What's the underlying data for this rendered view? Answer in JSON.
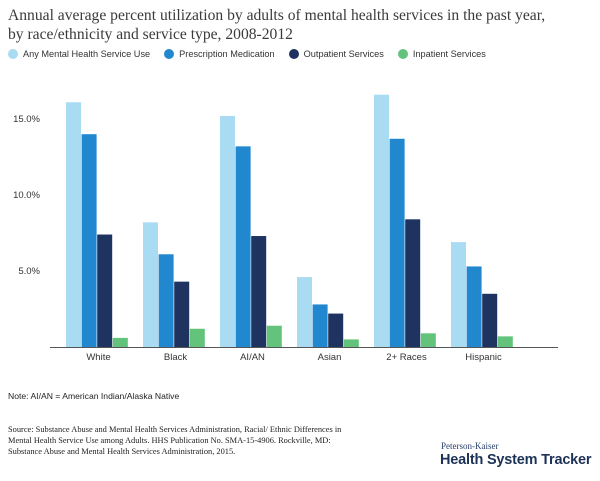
{
  "title_lines": [
    "Annual average percent utilization by adults of mental health services in the past year,",
    "by race/ethnicity and service type, 2008-2012"
  ],
  "colors": {
    "any": "#a9dbf3",
    "prescription": "#2187cf",
    "outpatient": "#1f3361",
    "inpatient": "#63c37b",
    "axis": "#555555",
    "grid": "#e5e5e5"
  },
  "note": "Note: AI/AN = American Indian/Alaska Native",
  "source_lines": [
    "Source: Substance Abuse and Mental Health Services Administration, Racial/ Ethnic Differences in",
    "Mental Health Service Use among Adults. HHS Publication No. SMA-15-4906. Rockville, MD:",
    "Substance Abuse and Mental Health Services Administration, 2015."
  ],
  "brand": {
    "top": "Peterson-Kaiser",
    "main": "Health System Tracker"
  },
  "chart_data": {
    "type": "bar",
    "title": "Annual average percent utilization by adults of mental health services in the past year, by race/ethnicity and service type, 2008-2012",
    "categories": [
      "White",
      "Black",
      "AI/AN",
      "Asian",
      "2+ Races",
      "Hispanic"
    ],
    "series": [
      {
        "name": "Any Mental Health Service Use",
        "values": [
          16.1,
          8.2,
          15.2,
          4.6,
          16.6,
          6.9
        ]
      },
      {
        "name": "Prescription Medication",
        "values": [
          14.0,
          6.1,
          13.2,
          2.8,
          13.7,
          5.3
        ]
      },
      {
        "name": "Outpatient Services",
        "values": [
          7.4,
          4.3,
          7.3,
          2.2,
          8.4,
          3.5
        ]
      },
      {
        "name": "Inpatient Services",
        "values": [
          0.6,
          1.2,
          1.4,
          0.5,
          0.9,
          0.7
        ]
      }
    ],
    "yticks": [
      5,
      10,
      15
    ],
    "ytick_labels": [
      "5.0%",
      "10.0%",
      "15.0%"
    ],
    "ylim": [
      0,
      18
    ],
    "xlabel": "",
    "ylabel": "",
    "grid": false,
    "legend_position": "top"
  }
}
